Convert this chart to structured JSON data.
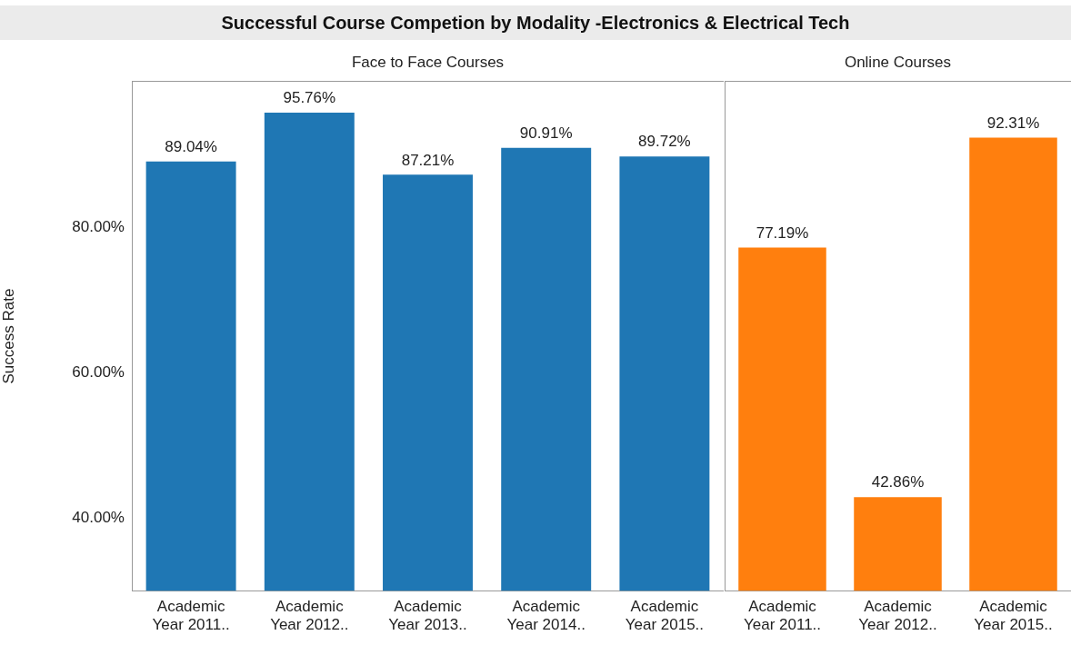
{
  "chart_data": [
    {
      "type": "bar",
      "title": "Successful Course Competion by Modality -Electronics & Electrical Tech",
      "subtitle": "Face to Face Courses",
      "ylabel": "Success Rate",
      "categories": [
        "Academic Year 2011..",
        "Academic Year 2012..",
        "Academic Year 2013..",
        "Academic Year 2014..",
        "Academic Year 2015.."
      ],
      "series": [
        {
          "color": "#1f77b4",
          "values": [
            89.04,
            95.76,
            87.21,
            90.91,
            89.72
          ],
          "value_labels": [
            "89.04%",
            "95.76%",
            "87.21%",
            "90.91%",
            "89.72%"
          ]
        }
      ],
      "ylim": [
        30,
        100
      ],
      "yticks": [
        {
          "value": 40,
          "label": "40.00%"
        },
        {
          "value": 60,
          "label": "60.00%"
        },
        {
          "value": 80,
          "label": "80.00%"
        }
      ],
      "grid": false,
      "legend": false
    },
    {
      "type": "bar",
      "subtitle": "Online Courses",
      "categories": [
        "Academic Year 2011..",
        "Academic Year 2012..",
        "Academic Year 2015.."
      ],
      "series": [
        {
          "color": "#ff7f0e",
          "values": [
            77.19,
            42.86,
            92.31
          ],
          "value_labels": [
            "77.19%",
            "42.86%",
            "92.31%"
          ]
        }
      ],
      "ylim": [
        30,
        100
      ],
      "tick_labels": "x",
      "grid": false,
      "legend": false
    }
  ]
}
